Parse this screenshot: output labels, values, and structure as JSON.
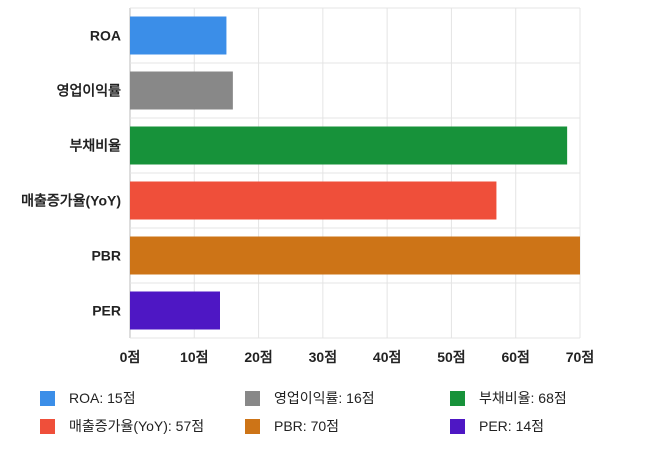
{
  "chart_data": {
    "type": "bar",
    "orientation": "horizontal",
    "categories": [
      "ROA",
      "영업이익률",
      "부채비율",
      "매출증가율(YoY)",
      "PBR",
      "PER"
    ],
    "values": [
      15,
      16,
      68,
      57,
      70,
      14
    ],
    "colors": [
      "#3b8ee8",
      "#888888",
      "#17923a",
      "#ef4f3a",
      "#cd7417",
      "#4e17c4"
    ],
    "xlim": [
      0,
      70
    ],
    "xticks": [
      0,
      10,
      20,
      30,
      40,
      50,
      60,
      70
    ],
    "tick_suffix": "점",
    "grid": true,
    "legend_position": "bottom",
    "legend": [
      {
        "label": "ROA: 15점",
        "color": "#3b8ee8"
      },
      {
        "label": "영업이익률: 16점",
        "color": "#888888"
      },
      {
        "label": "부채비율: 68점",
        "color": "#17923a"
      },
      {
        "label": "매출증가율(YoY): 57점",
        "color": "#ef4f3a"
      },
      {
        "label": "PBR: 70점",
        "color": "#cd7417"
      },
      {
        "label": "PER: 14점",
        "color": "#4e17c4"
      }
    ]
  }
}
